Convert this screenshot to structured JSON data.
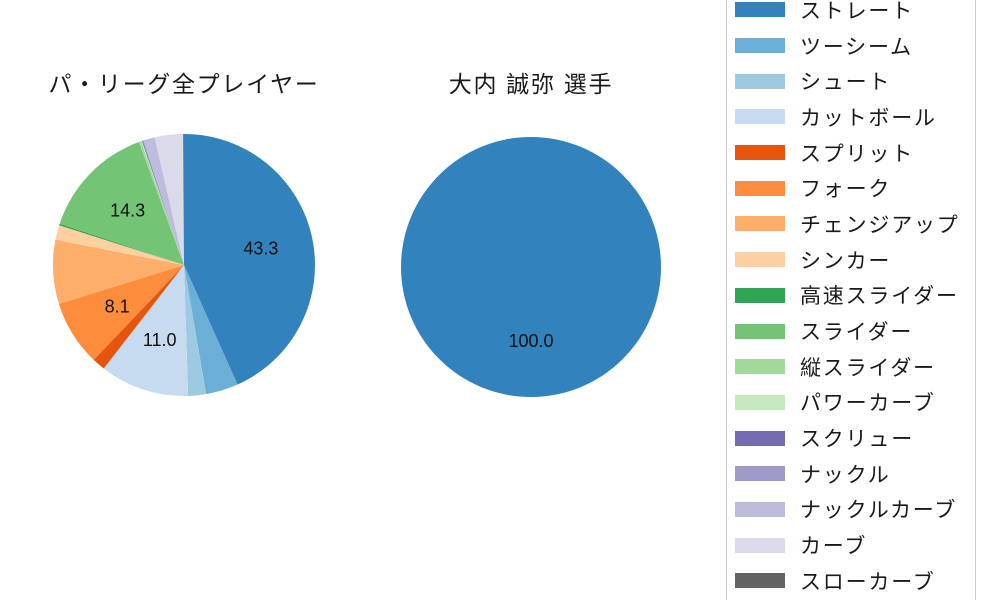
{
  "page": {
    "background_color": "#ffffff",
    "text_color": "#1a1a1a"
  },
  "chart_data": [
    {
      "type": "pie",
      "title": "パ・リーグ全プレイヤー",
      "start_angle_deg": 90,
      "direction": "clockwise",
      "categories": [
        "ストレート",
        "ツーシーム",
        "シュート",
        "カットボール",
        "スプリット",
        "フォーク",
        "チェンジアップ",
        "シンカー",
        "高速スライダー",
        "スライダー",
        "縦スライダー",
        "パワーカーブ",
        "スクリュー",
        "ナックル",
        "ナックルカーブ",
        "カーブ",
        "スローカーブ"
      ],
      "values": [
        43.3,
        4.0,
        2.2,
        11.0,
        1.6,
        8.1,
        7.9,
        1.8,
        0.2,
        14.3,
        0.3,
        0.1,
        0.1,
        0.1,
        1.4,
        3.5,
        0.1
      ],
      "colors": [
        "#3182bd",
        "#6baed6",
        "#9ecae1",
        "#c6dbef",
        "#e6550d",
        "#fd8d3c",
        "#fdae6b",
        "#fdd0a2",
        "#31a354",
        "#74c476",
        "#a1d99b",
        "#c7e9c0",
        "#756bb1",
        "#9e9ac8",
        "#bcbddc",
        "#dadaeb",
        "#636363"
      ],
      "pct_labels": [
        "43.3",
        null,
        null,
        "11.0",
        null,
        "8.1",
        null,
        null,
        null,
        "14.3",
        null,
        null,
        null,
        null,
        null,
        null,
        null
      ]
    },
    {
      "type": "pie",
      "title": "大内 誠弥 選手",
      "start_angle_deg": 90,
      "direction": "clockwise",
      "categories": [
        "ストレート"
      ],
      "values": [
        100.0
      ],
      "colors": [
        "#3182bd"
      ],
      "pct_labels": [
        "100.0"
      ]
    }
  ],
  "legend": {
    "position": "right",
    "items": [
      {
        "label": "ストレート",
        "color": "#3182bd"
      },
      {
        "label": "ツーシーム",
        "color": "#6baed6"
      },
      {
        "label": "シュート",
        "color": "#9ecae1"
      },
      {
        "label": "カットボール",
        "color": "#c6dbef"
      },
      {
        "label": "スプリット",
        "color": "#e6550d"
      },
      {
        "label": "フォーク",
        "color": "#fd8d3c"
      },
      {
        "label": "チェンジアップ",
        "color": "#fdae6b"
      },
      {
        "label": "シンカー",
        "color": "#fdd0a2"
      },
      {
        "label": "高速スライダー",
        "color": "#31a354"
      },
      {
        "label": "スライダー",
        "color": "#74c476"
      },
      {
        "label": "縦スライダー",
        "color": "#a1d99b"
      },
      {
        "label": "パワーカーブ",
        "color": "#c7e9c0"
      },
      {
        "label": "スクリュー",
        "color": "#756bb1"
      },
      {
        "label": "ナックル",
        "color": "#9e9ac8"
      },
      {
        "label": "ナックルカーブ",
        "color": "#bcbddc"
      },
      {
        "label": "カーブ",
        "color": "#dadaeb"
      },
      {
        "label": "スローカーブ",
        "color": "#636363"
      }
    ]
  }
}
